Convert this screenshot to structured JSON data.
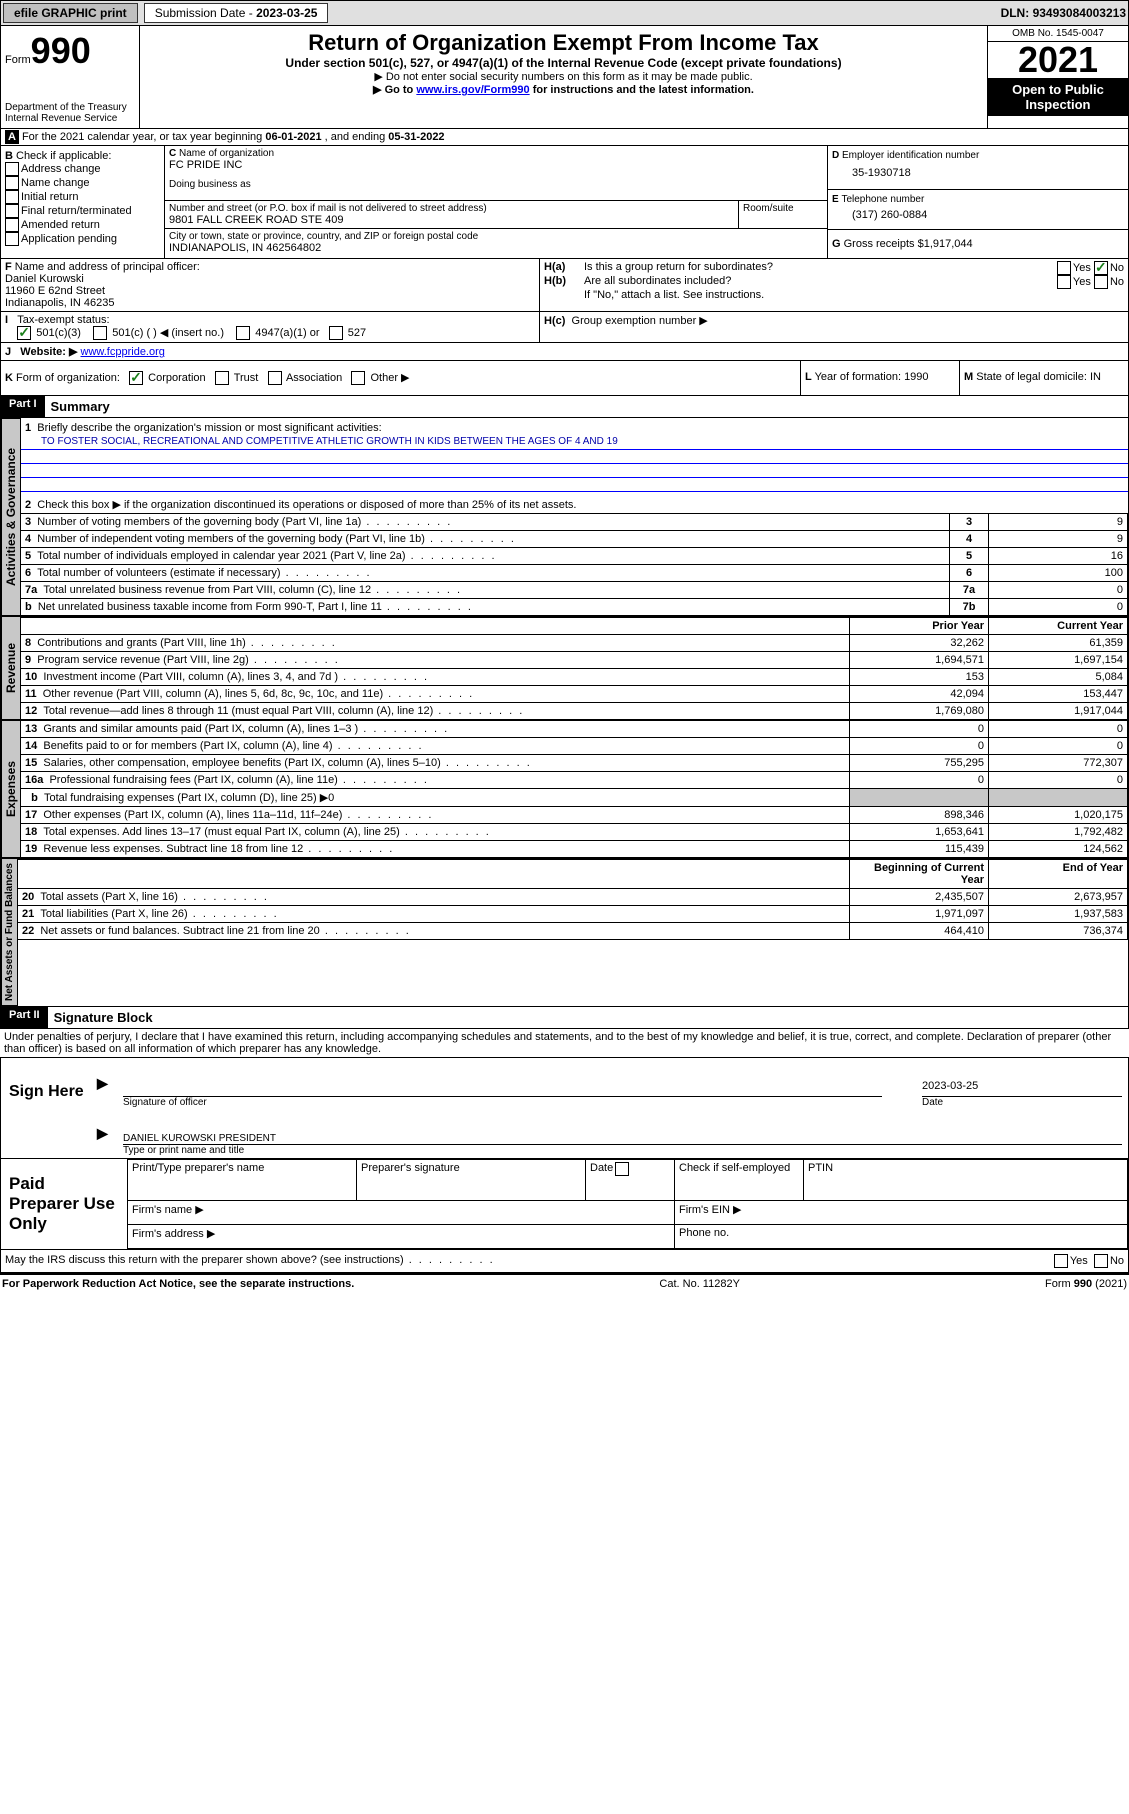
{
  "topbar": {
    "efile": "efile GRAPHIC print",
    "subdate_lbl": "Submission Date - ",
    "subdate": "2023-03-25",
    "dln_lbl": "DLN: ",
    "dln": "93493084003213"
  },
  "header": {
    "form_small": "Form",
    "form_num": "990",
    "dept": "Department of the Treasury",
    "irs": "Internal Revenue Service",
    "title": "Return of Organization Exempt From Income Tax",
    "sub1": "Under section 501(c), 527, or 4947(a)(1) of the Internal Revenue Code (except private foundations)",
    "sub2": "▶ Do not enter social security numbers on this form as it may be made public.",
    "sub3_pre": "▶ Go to ",
    "sub3_link": "www.irs.gov/Form990",
    "sub3_post": " for instructions and the latest information.",
    "omb": "OMB No. 1545-0047",
    "year": "2021",
    "open": "Open to Public Inspection"
  },
  "a": {
    "line": "For the 2021 calendar year, or tax year beginning ",
    "begin": "06-01-2021",
    "mid": " , and ending ",
    "end": "05-31-2022"
  },
  "b": {
    "title": "Check if applicable:",
    "opts": [
      "Address change",
      "Name change",
      "Initial return",
      "Final return/terminated",
      "Amended return",
      "Application pending"
    ]
  },
  "c": {
    "lbl": "Name of organization",
    "name": "FC PRIDE INC",
    "dba": "Doing business as",
    "addr_lbl": "Number and street (or P.O. box if mail is not delivered to street address)",
    "room": "Room/suite",
    "addr": "9801 FALL CREEK ROAD STE 409",
    "city_lbl": "City or town, state or province, country, and ZIP or foreign postal code",
    "city": "INDIANAPOLIS, IN  462564802"
  },
  "d": {
    "lbl": "Employer identification number",
    "val": "35-1930718"
  },
  "e": {
    "lbl": "Telephone number",
    "val": "(317) 260-0884"
  },
  "g": {
    "lbl": "Gross receipts $",
    "val": "1,917,044"
  },
  "f": {
    "lbl": "Name and address of principal officer:",
    "name": "Daniel Kurowski",
    "addr1": "11960 E 62nd Street",
    "addr2": "Indianapolis, IN  46235"
  },
  "h": {
    "a": "Is this a group return for subordinates?",
    "b": "Are all subordinates included?",
    "c": "Group exemption number ▶",
    "ifno": "If \"No,\" attach a list. See instructions.",
    "yes": "Yes",
    "no": "No"
  },
  "i": {
    "lbl": "Tax-exempt status:",
    "o1": "501(c)(3)",
    "o2": "501(c) (  ) ◀ (insert no.)",
    "o3": "4947(a)(1) or",
    "o4": "527"
  },
  "j": {
    "lbl": "Website: ▶",
    "val": "www.fcppride.org"
  },
  "k": {
    "lbl": "Form of organization:",
    "o1": "Corporation",
    "o2": "Trust",
    "o3": "Association",
    "o4": "Other ▶"
  },
  "l": {
    "lbl": "Year of formation: ",
    "val": "1990"
  },
  "m": {
    "lbl": "State of legal domicile: ",
    "val": "IN"
  },
  "part1": {
    "hdr": "Part I",
    "title": "Summary"
  },
  "summary": {
    "l1": "Briefly describe the organization's mission or most significant activities:",
    "mission": "TO FOSTER SOCIAL, RECREATIONAL AND COMPETITIVE ATHLETIC GROWTH IN KIDS BETWEEN THE AGES OF 4 AND 19",
    "l2": "Check this box ▶        if the organization discontinued its operations or disposed of more than 25% of its net assets.",
    "rows_gov": [
      {
        "n": "3",
        "t": "Number of voting members of the governing body (Part VI, line 1a)",
        "c": "3",
        "v": "9"
      },
      {
        "n": "4",
        "t": "Number of independent voting members of the governing body (Part VI, line 1b)",
        "c": "4",
        "v": "9"
      },
      {
        "n": "5",
        "t": "Total number of individuals employed in calendar year 2021 (Part V, line 2a)",
        "c": "5",
        "v": "16"
      },
      {
        "n": "6",
        "t": "Total number of volunteers (estimate if necessary)",
        "c": "6",
        "v": "100"
      },
      {
        "n": "7a",
        "t": "Total unrelated business revenue from Part VIII, column (C), line 12",
        "c": "7a",
        "v": "0"
      },
      {
        "n": "b",
        "t": "Net unrelated business taxable income from Form 990-T, Part I, line 11",
        "c": "7b",
        "v": "0"
      }
    ],
    "hdr_prior": "Prior Year",
    "hdr_curr": "Current Year",
    "rows_rev": [
      {
        "n": "8",
        "t": "Contributions and grants (Part VIII, line 1h)",
        "p": "32,262",
        "c": "61,359"
      },
      {
        "n": "9",
        "t": "Program service revenue (Part VIII, line 2g)",
        "p": "1,694,571",
        "c": "1,697,154"
      },
      {
        "n": "10",
        "t": "Investment income (Part VIII, column (A), lines 3, 4, and 7d )",
        "p": "153",
        "c": "5,084"
      },
      {
        "n": "11",
        "t": "Other revenue (Part VIII, column (A), lines 5, 6d, 8c, 9c, 10c, and 11e)",
        "p": "42,094",
        "c": "153,447"
      },
      {
        "n": "12",
        "t": "Total revenue—add lines 8 through 11 (must equal Part VIII, column (A), line 12)",
        "p": "1,769,080",
        "c": "1,917,044"
      }
    ],
    "rows_exp": [
      {
        "n": "13",
        "t": "Grants and similar amounts paid (Part IX, column (A), lines 1–3 )",
        "p": "0",
        "c": "0"
      },
      {
        "n": "14",
        "t": "Benefits paid to or for members (Part IX, column (A), line 4)",
        "p": "0",
        "c": "0"
      },
      {
        "n": "15",
        "t": "Salaries, other compensation, employee benefits (Part IX, column (A), lines 5–10)",
        "p": "755,295",
        "c": "772,307"
      },
      {
        "n": "16a",
        "t": "Professional fundraising fees (Part IX, column (A), line 11e)",
        "p": "0",
        "c": "0"
      },
      {
        "n": "b",
        "t": "Total fundraising expenses (Part IX, column (D), line 25) ▶0",
        "p": "",
        "c": ""
      },
      {
        "n": "17",
        "t": "Other expenses (Part IX, column (A), lines 11a–11d, 11f–24e)",
        "p": "898,346",
        "c": "1,020,175"
      },
      {
        "n": "18",
        "t": "Total expenses. Add lines 13–17 (must equal Part IX, column (A), line 25)",
        "p": "1,653,641",
        "c": "1,792,482"
      },
      {
        "n": "19",
        "t": "Revenue less expenses. Subtract line 18 from line 12",
        "p": "115,439",
        "c": "124,562"
      }
    ],
    "hdr_begin": "Beginning of Current Year",
    "hdr_end": "End of Year",
    "rows_net": [
      {
        "n": "20",
        "t": "Total assets (Part X, line 16)",
        "p": "2,435,507",
        "c": "2,673,957"
      },
      {
        "n": "21",
        "t": "Total liabilities (Part X, line 26)",
        "p": "1,971,097",
        "c": "1,937,583"
      },
      {
        "n": "22",
        "t": "Net assets or fund balances. Subtract line 21 from line 20",
        "p": "464,410",
        "c": "736,374"
      }
    ],
    "vert_gov": "Activities & Governance",
    "vert_rev": "Revenue",
    "vert_exp": "Expenses",
    "vert_net": "Net Assets or Fund Balances"
  },
  "part2": {
    "hdr": "Part II",
    "title": "Signature Block",
    "decl": "Under penalties of perjury, I declare that I have examined this return, including accompanying schedules and statements, and to the best of my knowledge and belief, it is true, correct, and complete. Declaration of preparer (other than officer) is based on all information of which preparer has any knowledge.",
    "sign": "Sign Here",
    "sig_lbl": "Signature of officer",
    "date_lbl": "Date",
    "date": "2023-03-25",
    "name": "DANIEL KUROWSKI  PRESIDENT",
    "name_lbl": "Type or print name and title",
    "paid": "Paid Preparer Use Only",
    "p1": "Print/Type preparer's name",
    "p2": "Preparer's signature",
    "p3": "Date",
    "p4": "Check        if self-employed",
    "p5": "PTIN",
    "firm_name": "Firm's name   ▶",
    "firm_ein": "Firm's EIN ▶",
    "firm_addr": "Firm's address ▶",
    "phone": "Phone no.",
    "may": "May the IRS discuss this return with the preparer shown above? (see instructions)"
  },
  "footer": {
    "l": "For Paperwork Reduction Act Notice, see the separate instructions.",
    "m": "Cat. No. 11282Y",
    "r": "Form 990 (2021)"
  }
}
